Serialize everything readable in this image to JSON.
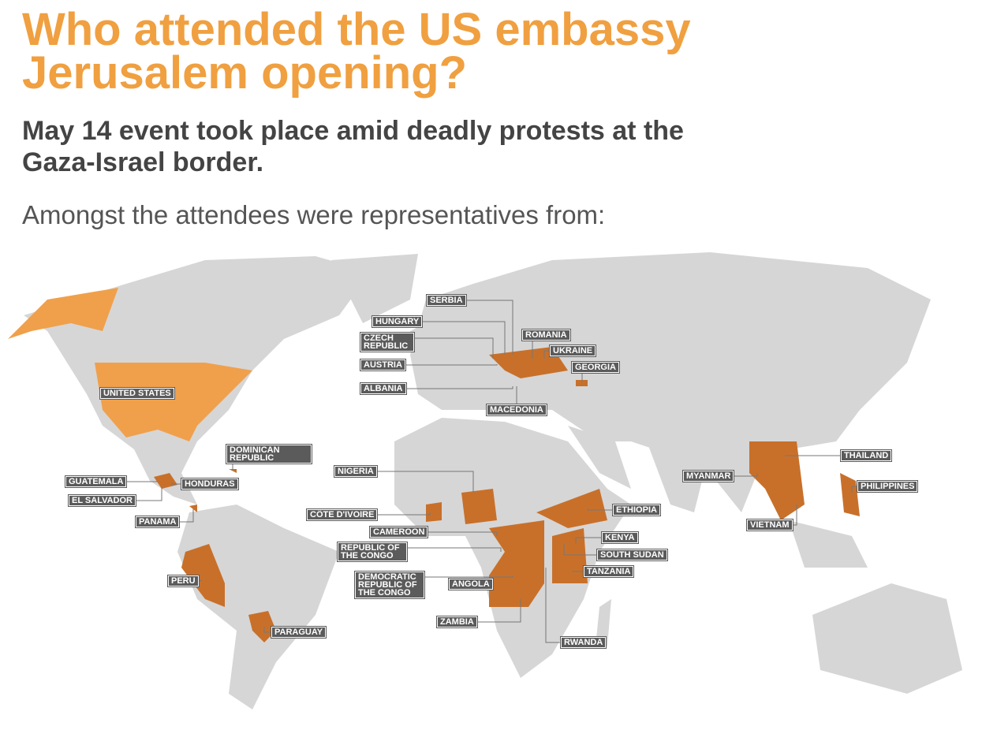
{
  "header": {
    "title": [
      "Who attended the US embassy",
      "Jerusalem opening?"
    ],
    "subtitle": [
      "May 14 event took place amid deadly protests at the",
      "Gaza-Israel border."
    ],
    "intro": "Amongst the attendees were representatives from:"
  },
  "countries": [
    {
      "label": "SERBIA"
    },
    {
      "label": "HUNGARY"
    },
    {
      "label": "CZECH REPUBLIC"
    },
    {
      "label": "AUSTRIA"
    },
    {
      "label": "ALBANIA"
    },
    {
      "label": "MACEDONIA"
    },
    {
      "label": "ROMANIA"
    },
    {
      "label": "UKRAINE"
    },
    {
      "label": "GEORGIA"
    },
    {
      "label": "UNITED STATES"
    },
    {
      "label": "DOMINICAN REPUBLIC"
    },
    {
      "label": "GUATEMALA"
    },
    {
      "label": "HONDURAS"
    },
    {
      "label": "EL SALVADOR"
    },
    {
      "label": "PANAMA"
    },
    {
      "label": "PERU"
    },
    {
      "label": "PARAGUAY"
    },
    {
      "label": "NIGERIA"
    },
    {
      "label": "CÔTE D'IVOIRE"
    },
    {
      "label": "CAMEROON"
    },
    {
      "label": "REPUBLIC OF THE CONGO"
    },
    {
      "label": "DEMOCRATIC REPUBLIC OF THE CONGO"
    },
    {
      "label": "ANGOLA"
    },
    {
      "label": "ZAMBIA"
    },
    {
      "label": "RWANDA"
    },
    {
      "label": "ETHIOPIA"
    },
    {
      "label": "KENYA"
    },
    {
      "label": "SOUTH SUDAN"
    },
    {
      "label": "TANZANIA"
    },
    {
      "label": "MYANMAR"
    },
    {
      "label": "THAILAND"
    },
    {
      "label": "PHILIPPINES"
    },
    {
      "label": "VIETNAM"
    }
  ]
}
